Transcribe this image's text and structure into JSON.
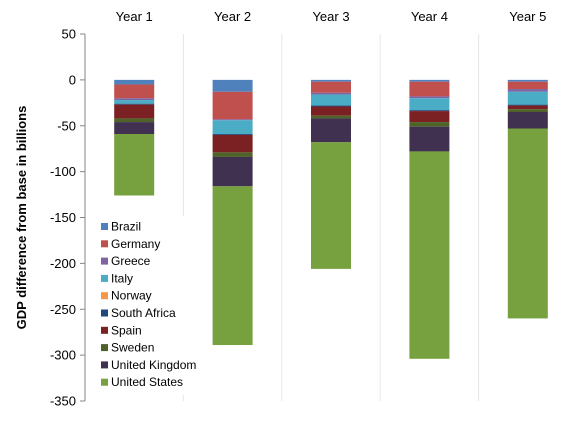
{
  "chart_data": {
    "type": "bar",
    "stacked": true,
    "title": "",
    "xlabel": "",
    "ylabel": "GDP difference from base in billions",
    "ylim": [
      -350,
      50
    ],
    "yticks": [
      50,
      0,
      -50,
      -100,
      -150,
      -200,
      -250,
      -300,
      -350
    ],
    "grid": false,
    "category_dividers": true,
    "legend_position": "lower-left, inside plot area",
    "categories": [
      "Year 1",
      "Year 2",
      "Year 3",
      "Year 4",
      "Year 5"
    ],
    "series": [
      {
        "name": "Brazil",
        "color": "#4F81BD",
        "values": [
          -5,
          -13,
          -2,
          -2,
          -2
        ]
      },
      {
        "name": "Germany",
        "color": "#C0504D",
        "values": [
          -15,
          -30,
          -12,
          -16,
          -8
        ]
      },
      {
        "name": "Greece",
        "color": "#8064A2",
        "values": [
          -2,
          -1,
          -2,
          -2,
          -3
        ]
      },
      {
        "name": "Italy",
        "color": "#4BACC6",
        "values": [
          -4,
          -15,
          -12,
          -13,
          -14
        ]
      },
      {
        "name": "Norway",
        "color": "#F79646",
        "values": [
          0,
          0,
          0,
          0,
          0
        ]
      },
      {
        "name": "South Africa",
        "color": "#1F497D",
        "values": [
          -1,
          -1,
          -1,
          -1,
          -1
        ]
      },
      {
        "name": "Spain",
        "color": "#7B2023",
        "values": [
          -15,
          -19,
          -10,
          -12,
          -4
        ]
      },
      {
        "name": "Sweden",
        "color": "#4F6228",
        "values": [
          -4,
          -5,
          -3,
          -5,
          -3
        ]
      },
      {
        "name": "United Kingdom",
        "color": "#403151",
        "values": [
          -13,
          -32,
          -26,
          -27,
          -18
        ]
      },
      {
        "name": "United States",
        "color": "#77A03E",
        "values": [
          -67,
          -173,
          -138,
          -226,
          -207
        ]
      }
    ]
  }
}
